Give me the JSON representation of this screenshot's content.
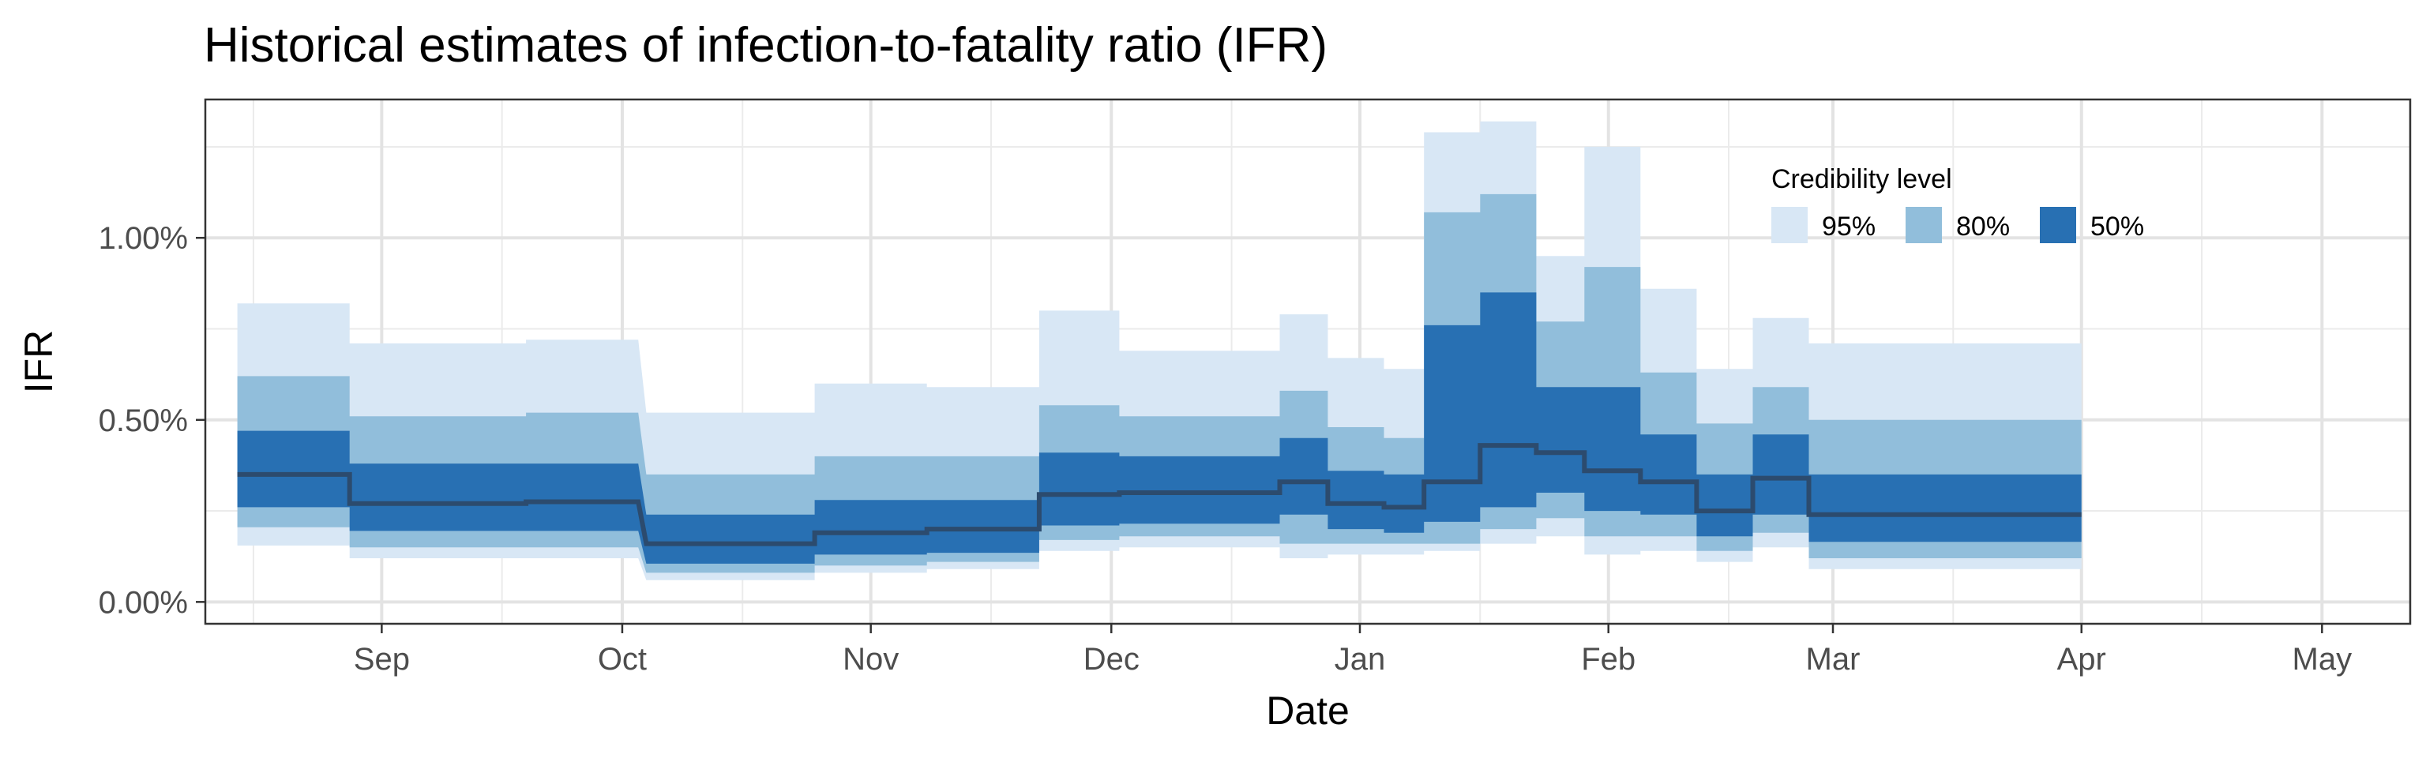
{
  "chart_data": {
    "type": "area",
    "title": "Historical estimates of infection-to-fatality ratio (IFR)",
    "xlabel": "Date",
    "ylabel": "IFR",
    "xlim": [
      "2020-08-10",
      "2021-05-12"
    ],
    "ylim": [
      -0.0006,
      0.0138
    ],
    "x_ticks": [
      {
        "date": "2020-09-01",
        "label": "Sep"
      },
      {
        "date": "2020-10-01",
        "label": "Oct"
      },
      {
        "date": "2020-11-01",
        "label": "Nov"
      },
      {
        "date": "2020-12-01",
        "label": "Dec"
      },
      {
        "date": "2021-01-01",
        "label": "Jan"
      },
      {
        "date": "2021-02-01",
        "label": "Feb"
      },
      {
        "date": "2021-03-01",
        "label": "Mar"
      },
      {
        "date": "2021-04-01",
        "label": "Apr"
      },
      {
        "date": "2021-05-01",
        "label": "May"
      }
    ],
    "x_minor_ticks": [
      "2020-08-16",
      "2020-09-16",
      "2020-10-16",
      "2020-11-16",
      "2020-12-16",
      "2021-01-16",
      "2021-02-16",
      "2021-03-16",
      "2021-04-16"
    ],
    "y_ticks": [
      {
        "value": 0.0,
        "label": "0.00%"
      },
      {
        "value": 0.005,
        "label": "0.50%"
      },
      {
        "value": 0.01,
        "label": "1.00%"
      }
    ],
    "y_minor_ticks": [
      0.0025,
      0.0075,
      0.0125
    ],
    "grid": true,
    "legend": {
      "title": "Credibility level",
      "position": "top-right",
      "entries": [
        {
          "label": "95%",
          "color": "#d8e7f5"
        },
        {
          "label": "80%",
          "color": "#91bedb"
        },
        {
          "label": "50%",
          "color": "#2870b3"
        }
      ]
    },
    "median_color": "#2c4b6e",
    "segments": [
      {
        "x": [
          "2020-08-14",
          "2020-08-27"
        ],
        "median": 0.0035,
        "ci50": [
          0.0026,
          0.0047
        ],
        "ci80": [
          0.00205,
          0.0062
        ],
        "ci95": [
          0.00155,
          0.0082
        ]
      },
      {
        "x": [
          "2020-08-28",
          "2020-09-18"
        ],
        "median": 0.0027,
        "ci50": [
          0.00195,
          0.0038
        ],
        "ci80": [
          0.0015,
          0.0051
        ],
        "ci95": [
          0.0012,
          0.0071
        ]
      },
      {
        "x": [
          "2020-09-19",
          "2020-10-02"
        ],
        "median": 0.00275,
        "ci50": [
          0.00195,
          0.0038
        ],
        "ci80": [
          0.0015,
          0.0052
        ],
        "ci95": [
          0.0012,
          0.0072
        ]
      },
      {
        "x": [
          "2020-10-04",
          "2020-10-24"
        ],
        "median": 0.0016,
        "ci50": [
          0.00105,
          0.0024
        ],
        "ci80": [
          0.0008,
          0.0035
        ],
        "ci95": [
          0.0006,
          0.0052
        ]
      },
      {
        "x": [
          "2020-10-25",
          "2020-11-07"
        ],
        "median": 0.0019,
        "ci50": [
          0.0013,
          0.0028
        ],
        "ci80": [
          0.001,
          0.004
        ],
        "ci95": [
          0.0008,
          0.006
        ]
      },
      {
        "x": [
          "2020-11-08",
          "2020-11-21"
        ],
        "median": 0.002,
        "ci50": [
          0.00135,
          0.0028
        ],
        "ci80": [
          0.0011,
          0.004
        ],
        "ci95": [
          0.0009,
          0.0059
        ]
      },
      {
        "x": [
          "2020-11-22",
          "2020-12-01"
        ],
        "median": 0.00295,
        "ci50": [
          0.0021,
          0.0041
        ],
        "ci80": [
          0.0017,
          0.0054
        ],
        "ci95": [
          0.0014,
          0.008
        ]
      },
      {
        "x": [
          "2020-12-02",
          "2020-12-14"
        ],
        "median": 0.003,
        "ci50": [
          0.00215,
          0.004
        ],
        "ci80": [
          0.0018,
          0.0051
        ],
        "ci95": [
          0.0015,
          0.0069
        ]
      },
      {
        "x": [
          "2020-12-15",
          "2020-12-21"
        ],
        "median": 0.003,
        "ci50": [
          0.00215,
          0.004
        ],
        "ci80": [
          0.0018,
          0.0051
        ],
        "ci95": [
          0.0015,
          0.0069
        ]
      },
      {
        "x": [
          "2020-12-22",
          "2020-12-27"
        ],
        "median": 0.0033,
        "ci50": [
          0.0024,
          0.0045
        ],
        "ci80": [
          0.0016,
          0.0058
        ],
        "ci95": [
          0.0012,
          0.0079
        ]
      },
      {
        "x": [
          "2020-12-28",
          "2021-01-03"
        ],
        "median": 0.0027,
        "ci50": [
          0.002,
          0.0036
        ],
        "ci80": [
          0.0016,
          0.0048
        ],
        "ci95": [
          0.0013,
          0.0067
        ]
      },
      {
        "x": [
          "2021-01-04",
          "2021-01-08"
        ],
        "median": 0.0026,
        "ci50": [
          0.0019,
          0.0035
        ],
        "ci80": [
          0.0016,
          0.0045
        ],
        "ci95": [
          0.0013,
          0.0064
        ]
      },
      {
        "x": [
          "2021-01-09",
          "2021-01-15"
        ],
        "median": 0.0033,
        "ci50": [
          0.0022,
          0.0076
        ],
        "ci80": [
          0.0016,
          0.0107
        ],
        "ci95": [
          0.0014,
          0.0129
        ]
      },
      {
        "x": [
          "2021-01-16",
          "2021-01-22"
        ],
        "median": 0.0043,
        "ci50": [
          0.0026,
          0.0085
        ],
        "ci80": [
          0.002,
          0.0112
        ],
        "ci95": [
          0.0016,
          0.0132
        ]
      },
      {
        "x": [
          "2021-01-23",
          "2021-01-28"
        ],
        "median": 0.0041,
        "ci50": [
          0.003,
          0.0059
        ],
        "ci80": [
          0.0023,
          0.0077
        ],
        "ci95": [
          0.0018,
          0.0095
        ]
      },
      {
        "x": [
          "2021-01-29",
          "2021-02-04"
        ],
        "median": 0.0036,
        "ci50": [
          0.0025,
          0.0059
        ],
        "ci80": [
          0.0018,
          0.0092
        ],
        "ci95": [
          0.0013,
          0.0125
        ]
      },
      {
        "x": [
          "2021-02-05",
          "2021-02-11"
        ],
        "median": 0.0033,
        "ci50": [
          0.0024,
          0.0046
        ],
        "ci80": [
          0.0018,
          0.0063
        ],
        "ci95": [
          0.0014,
          0.0086
        ]
      },
      {
        "x": [
          "2021-02-12",
          "2021-02-18"
        ],
        "median": 0.0025,
        "ci50": [
          0.0018,
          0.0035
        ],
        "ci80": [
          0.0014,
          0.0049
        ],
        "ci95": [
          0.0011,
          0.0064
        ]
      },
      {
        "x": [
          "2021-02-19",
          "2021-02-25"
        ],
        "median": 0.0034,
        "ci50": [
          0.0024,
          0.0046
        ],
        "ci80": [
          0.0019,
          0.0059
        ],
        "ci95": [
          0.0015,
          0.0078
        ]
      },
      {
        "x": [
          "2021-02-26",
          "2021-03-31"
        ],
        "median": 0.0024,
        "ci50": [
          0.00165,
          0.0035
        ],
        "ci80": [
          0.0012,
          0.005
        ],
        "ci95": [
          0.0009,
          0.0071
        ]
      }
    ]
  }
}
